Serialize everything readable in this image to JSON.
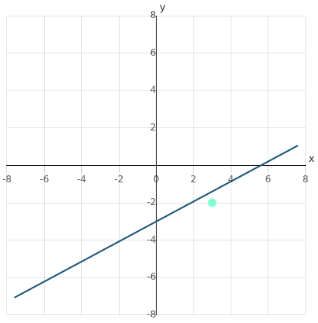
{
  "chart_data": {
    "type": "line",
    "xlabel": "x",
    "ylabel": "y",
    "xlim": [
      -8,
      8
    ],
    "ylim": [
      -8,
      8
    ],
    "xticks": [
      -8,
      -6,
      -4,
      -2,
      0,
      2,
      4,
      6,
      8
    ],
    "yticks": [
      -8,
      -6,
      -4,
      -2,
      2,
      4,
      6,
      8
    ],
    "grid": true,
    "series": [
      {
        "type": "line",
        "color": "#1a5276",
        "x": [
          -7.6,
          7.6
        ],
        "values": [
          -7.0667,
          1.0667
        ]
      },
      {
        "type": "scatter",
        "color": "#7fffd4",
        "x": [
          3
        ],
        "values": [
          -2
        ]
      }
    ]
  }
}
